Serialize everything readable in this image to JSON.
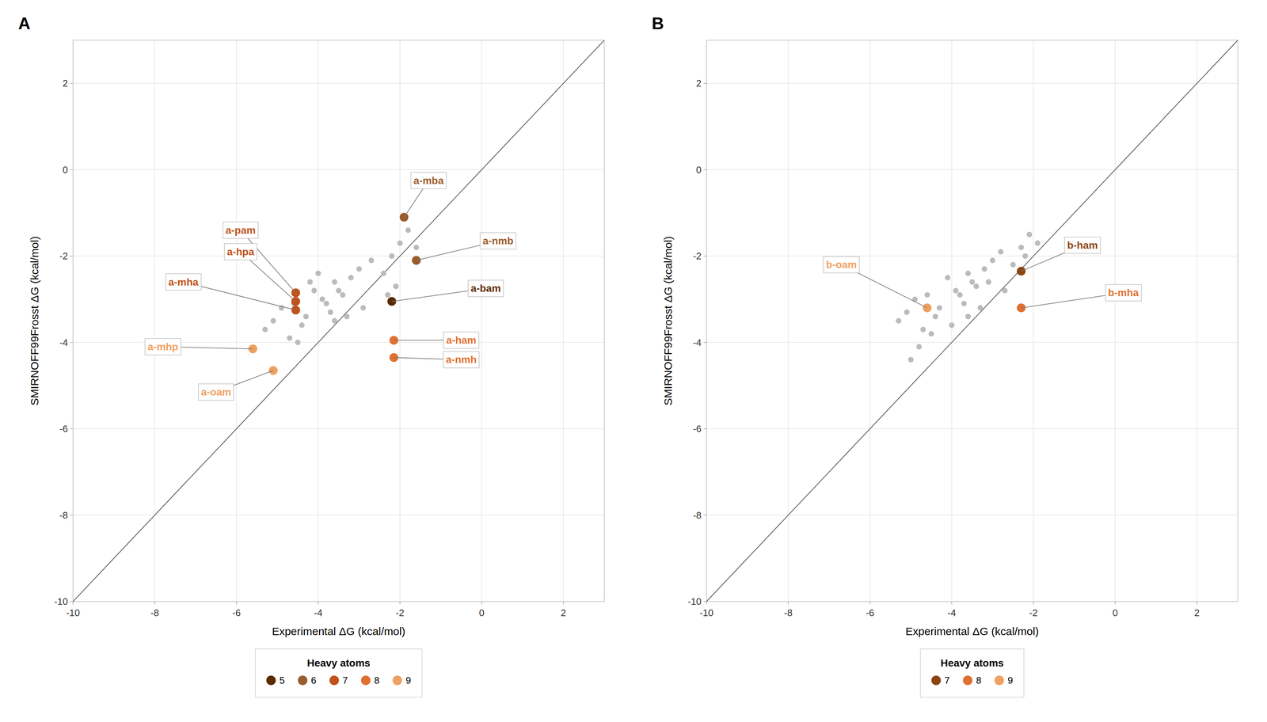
{
  "chart_data": [
    {
      "type": "scatter",
      "title": "A",
      "x_label": "Experimental ΔG (kcal/mol)",
      "y_label": "SMIRNOFF99Frosst ΔG (kcal/mol)",
      "xlim": [
        -10,
        3
      ],
      "ylim": [
        -10,
        3
      ],
      "xticks": [
        -10,
        -8,
        -6,
        -4,
        -2,
        0,
        2
      ],
      "yticks": [
        -10,
        -8,
        -6,
        -4,
        -2,
        0,
        2
      ],
      "grid": true,
      "legend": "bottom",
      "legend_title": "Heavy atoms",
      "series": [
        {
          "type": "line",
          "color": "#555555",
          "x": [
            -10,
            3
          ],
          "values": [
            -10,
            3
          ]
        },
        {
          "color": "#BBBBBB",
          "x": [
            -4.6,
            -4.3,
            -4.1,
            -3.9,
            -3.7,
            -3.5,
            -3.4,
            -3.2,
            -5.1,
            -4.9,
            -4.7,
            -4.4,
            -3.8,
            -3.6,
            -3.3,
            -3.0,
            -2.7,
            -2.4,
            -2.2,
            -2.0,
            -1.8,
            -1.6,
            -2.1,
            -2.3,
            -4.0,
            -5.3,
            -4.5,
            -3.6,
            -4.2,
            -2.9
          ],
          "values": [
            -3.1,
            -3.4,
            -2.8,
            -3.0,
            -3.3,
            -2.8,
            -2.9,
            -2.5,
            -3.5,
            -3.2,
            -3.9,
            -3.6,
            -3.1,
            -2.6,
            -3.4,
            -2.3,
            -2.1,
            -2.4,
            -2.0,
            -1.7,
            -1.4,
            -1.8,
            -2.7,
            -2.9,
            -2.4,
            -3.7,
            -4.0,
            -3.5,
            -2.6,
            -3.2
          ]
        },
        {
          "name": "5",
          "color": "#5C2A00",
          "x": [
            -2.2
          ],
          "values": [
            -3.05
          ]
        },
        {
          "name": "6",
          "color": "#9B5B2A",
          "x": [
            -1.9,
            -1.6
          ],
          "values": [
            -1.1,
            -2.1
          ]
        },
        {
          "name": "7",
          "color": "#C0521A",
          "x": [
            -4.55,
            -4.55,
            -4.55
          ],
          "values": [
            -2.85,
            -3.05,
            -3.25
          ]
        },
        {
          "name": "8",
          "color": "#E07030",
          "x": [
            -2.15,
            -2.15
          ],
          "values": [
            -3.95,
            -4.35
          ]
        },
        {
          "name": "9",
          "color": "#F0A060",
          "x": [
            -5.6,
            -5.1
          ],
          "values": [
            -4.15,
            -4.65
          ]
        }
      ],
      "annotations": [
        {
          "text": "a-mba",
          "x": -1.9,
          "y": -1.1,
          "text_x": -1.3,
          "text_y": -0.25,
          "color": "#9B5B2A"
        },
        {
          "text": "a-nmb",
          "x": -1.6,
          "y": -2.1,
          "text_x": 0.4,
          "text_y": -1.65,
          "color": "#9B5B2A"
        },
        {
          "text": "a-bam",
          "x": -2.2,
          "y": -3.05,
          "text_x": 0.1,
          "text_y": -2.75,
          "color": "#5C2A00"
        },
        {
          "text": "a-pam",
          "x": -4.55,
          "y": -2.85,
          "text_x": -5.9,
          "text_y": -1.4,
          "color": "#C0521A"
        },
        {
          "text": "a-hpa",
          "x": -4.55,
          "y": -3.05,
          "text_x": -5.9,
          "text_y": -1.9,
          "color": "#C0521A"
        },
        {
          "text": "a-mha",
          "x": -4.55,
          "y": -3.25,
          "text_x": -7.3,
          "text_y": -2.6,
          "color": "#C0521A"
        },
        {
          "text": "a-mhp",
          "x": -5.6,
          "y": -4.15,
          "text_x": -7.8,
          "text_y": -4.1,
          "color": "#F0A060"
        },
        {
          "text": "a-oam",
          "x": -5.1,
          "y": -4.65,
          "text_x": -6.5,
          "text_y": -5.15,
          "color": "#F0A060"
        },
        {
          "text": "a-ham",
          "x": -2.15,
          "y": -3.95,
          "text_x": -0.5,
          "text_y": -3.95,
          "color": "#E07030"
        },
        {
          "text": "a-nmh",
          "x": -2.15,
          "y": -4.35,
          "text_x": -0.5,
          "text_y": -4.4,
          "color": "#E07030"
        }
      ]
    },
    {
      "type": "scatter",
      "title": "B",
      "x_label": "Experimental ΔG (kcal/mol)",
      "y_label": "SMIRNOFF99Frosst ΔG (kcal/mol)",
      "xlim": [
        -10,
        3
      ],
      "ylim": [
        -10,
        3
      ],
      "xticks": [
        -10,
        -8,
        -6,
        -4,
        -2,
        0,
        2
      ],
      "yticks": [
        -10,
        -8,
        -6,
        -4,
        -2,
        0,
        2
      ],
      "grid": true,
      "legend": "bottom",
      "legend_title": "Heavy atoms",
      "series": [
        {
          "type": "line",
          "color": "#555555",
          "x": [
            -10,
            3
          ],
          "values": [
            -10,
            3
          ]
        },
        {
          "color": "#BBBBBB",
          "x": [
            -4.6,
            -4.3,
            -4.1,
            -3.9,
            -3.7,
            -3.5,
            -3.4,
            -3.2,
            -5.1,
            -4.9,
            -4.7,
            -4.4,
            -3.8,
            -3.6,
            -3.3,
            -3.0,
            -2.8,
            -2.5,
            -2.3,
            -2.1,
            -4.5,
            -5.3,
            -4.8,
            -3.1,
            -2.7,
            -5.0,
            -4.0,
            -3.6,
            -2.2,
            -1.9
          ],
          "values": [
            -2.9,
            -3.2,
            -2.5,
            -2.8,
            -3.1,
            -2.6,
            -2.7,
            -2.3,
            -3.3,
            -3.0,
            -3.7,
            -3.4,
            -2.9,
            -2.4,
            -3.2,
            -2.1,
            -1.9,
            -2.2,
            -1.8,
            -1.5,
            -3.8,
            -3.5,
            -4.1,
            -2.6,
            -2.8,
            -4.4,
            -3.6,
            -3.4,
            -2.0,
            -1.7
          ]
        },
        {
          "name": "7",
          "color": "#8B4513",
          "x": [
            -2.3
          ],
          "values": [
            -2.35
          ]
        },
        {
          "name": "8",
          "color": "#E07030",
          "x": [
            -2.3
          ],
          "values": [
            -3.2
          ]
        },
        {
          "name": "9",
          "color": "#F0A060",
          "x": [
            -4.6
          ],
          "values": [
            -3.2
          ]
        }
      ],
      "annotations": [
        {
          "text": "b-ham",
          "x": -2.3,
          "y": -2.35,
          "text_x": -0.8,
          "text_y": -1.75,
          "color": "#8B4513"
        },
        {
          "text": "b-mha",
          "x": -2.3,
          "y": -3.2,
          "text_x": 0.2,
          "text_y": -2.85,
          "color": "#E07030"
        },
        {
          "text": "b-oam",
          "x": -4.6,
          "y": -3.2,
          "text_x": -6.7,
          "text_y": -2.2,
          "color": "#F0A060"
        }
      ]
    }
  ]
}
